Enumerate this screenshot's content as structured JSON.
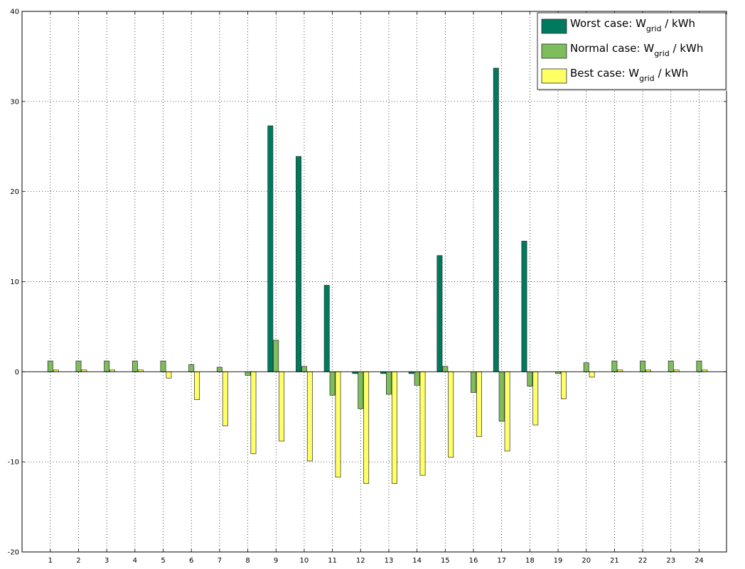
{
  "chart_data": {
    "type": "bar",
    "categories": [
      "1",
      "2",
      "3",
      "4",
      "5",
      "6",
      "7",
      "8",
      "9",
      "10",
      "11",
      "12",
      "13",
      "14",
      "15",
      "16",
      "17",
      "18",
      "19",
      "20",
      "21",
      "22",
      "23",
      "24"
    ],
    "ylim": [
      -20,
      40
    ],
    "yticks": [
      -20,
      -10,
      0,
      10,
      20,
      30,
      40
    ],
    "grid": true,
    "legend_position": "top-right",
    "series": [
      {
        "name": "Worst case: W",
        "name_sub": "grid",
        "name_suffix": " / kWh",
        "color": "#007a5e",
        "values": [
          0,
          0,
          0,
          0,
          0,
          0,
          0,
          0,
          27.3,
          23.9,
          9.6,
          -0.2,
          -0.2,
          -0.2,
          12.9,
          0,
          33.7,
          14.5,
          0,
          0,
          0,
          0,
          0,
          0
        ]
      },
      {
        "name": "Normal case: W",
        "name_sub": "grid",
        "name_suffix": " / kWh",
        "color": "#7dbd5c",
        "values": [
          1.2,
          1.2,
          1.2,
          1.2,
          1.2,
          0.8,
          0.5,
          -0.4,
          3.5,
          0.6,
          -2.6,
          -4.1,
          -2.5,
          -1.5,
          0.6,
          -2.3,
          -5.5,
          -1.6,
          -0.2,
          1.0,
          1.2,
          1.2,
          1.2,
          1.2
        ]
      },
      {
        "name": "Best case: W",
        "name_sub": "grid",
        "name_suffix": " / kWh",
        "color": "#ffff66",
        "values": [
          0.2,
          0.2,
          0.2,
          0.2,
          -0.7,
          -3.1,
          -6.0,
          -9.1,
          -7.7,
          -9.9,
          -11.7,
          -12.4,
          -12.4,
          -11.5,
          -9.5,
          -7.2,
          -8.8,
          -5.9,
          -3.0,
          -0.6,
          0.2,
          0.2,
          0.2,
          0.2
        ]
      }
    ]
  }
}
